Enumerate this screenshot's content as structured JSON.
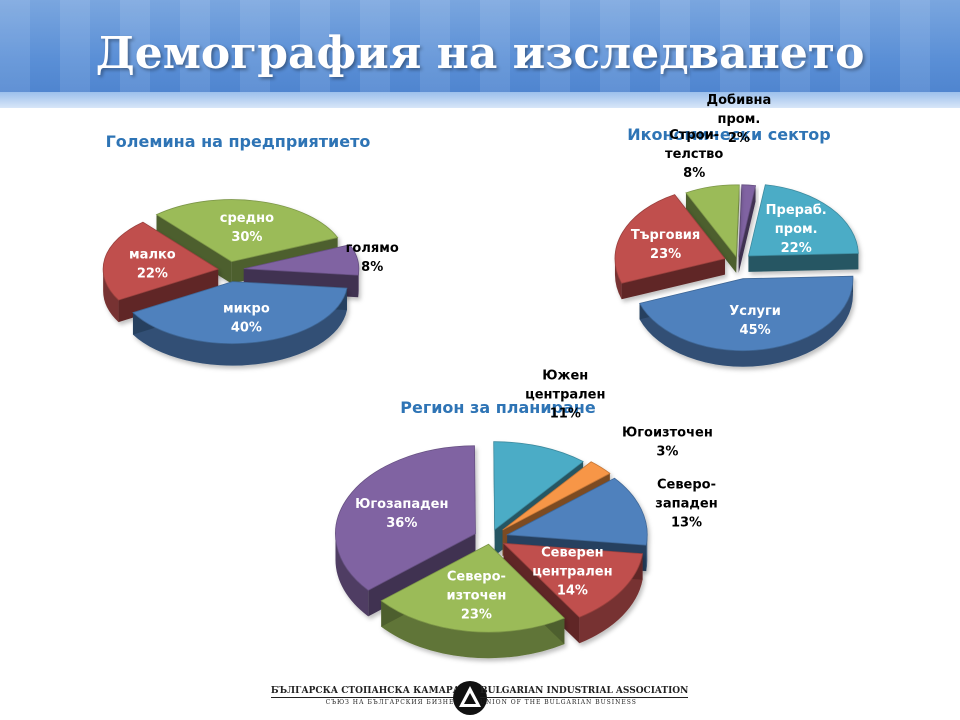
{
  "slide": {
    "title": "Демография на изследването"
  },
  "footer": {
    "org_bg": "БЪЛГАРСКА СТОПАНСКА КАМАРА",
    "org_bg_sub": "СЪЮЗ НА БЪЛГАРСКИЯ БИЗНЕС",
    "org_en": "BULGARIAN INDUSTRIAL ASSOCIATION",
    "org_en_sub": "UNION OF THE BULGARIAN BUSINESS"
  },
  "chart_data": [
    {
      "type": "pie",
      "title": "Големина на предприятието",
      "slices": [
        {
          "name": "микро",
          "label": [
            "микро",
            "40%"
          ],
          "value": 40,
          "color": "#4f81bd"
        },
        {
          "name": "малко",
          "label": [
            "малко",
            "22%"
          ],
          "value": 22,
          "color": "#c0504d"
        },
        {
          "name": "средно",
          "label": [
            "средно",
            "30%"
          ],
          "value": 30,
          "color": "#9bbb59"
        },
        {
          "name": "голямо",
          "label": [
            "голямо",
            "8%"
          ],
          "value": 8,
          "color": "#8064a2"
        }
      ]
    },
    {
      "type": "pie",
      "title": "Икономически сектор",
      "slices": [
        {
          "name": "Услуги",
          "label": [
            "Услуги",
            "45%"
          ],
          "value": 45,
          "color": "#4f81bd"
        },
        {
          "name": "Търговия",
          "label": [
            "Търговия",
            "23%"
          ],
          "value": 23,
          "color": "#c0504d"
        },
        {
          "name": "Строителство",
          "label": [
            "Строи-",
            "телство",
            "8%"
          ],
          "value": 8,
          "color": "#9bbb59"
        },
        {
          "name": "Добивна пром.",
          "label": [
            "Добивна",
            "пром.",
            "2%"
          ],
          "value": 2,
          "color": "#8064a2"
        },
        {
          "name": "Прераб. пром.",
          "label": [
            "Прераб.",
            "пром.",
            "22%"
          ],
          "value": 22,
          "color": "#4bacc6"
        }
      ]
    },
    {
      "type": "pie",
      "title": "Регион за планиране",
      "slices": [
        {
          "name": "Северозападен",
          "label": [
            "Северо-",
            "западен",
            "13%"
          ],
          "value": 13,
          "color": "#4f81bd"
        },
        {
          "name": "Северен централен",
          "label": [
            "Северен",
            "централен",
            "14%"
          ],
          "value": 14,
          "color": "#c0504d"
        },
        {
          "name": "Североизточен",
          "label": [
            "Северо-",
            "източен",
            "23%"
          ],
          "value": 23,
          "color": "#9bbb59"
        },
        {
          "name": "Югозападен",
          "label": [
            "Югозападен",
            "36%"
          ],
          "value": 36,
          "color": "#8064a2"
        },
        {
          "name": "Южен централен",
          "label": [
            "Южен",
            "централен",
            "11%"
          ],
          "value": 11,
          "color": "#4bacc6"
        },
        {
          "name": "Югоизточен",
          "label": [
            "Югоизточен",
            "3%"
          ],
          "value": 3,
          "color": "#f79646"
        }
      ]
    }
  ]
}
